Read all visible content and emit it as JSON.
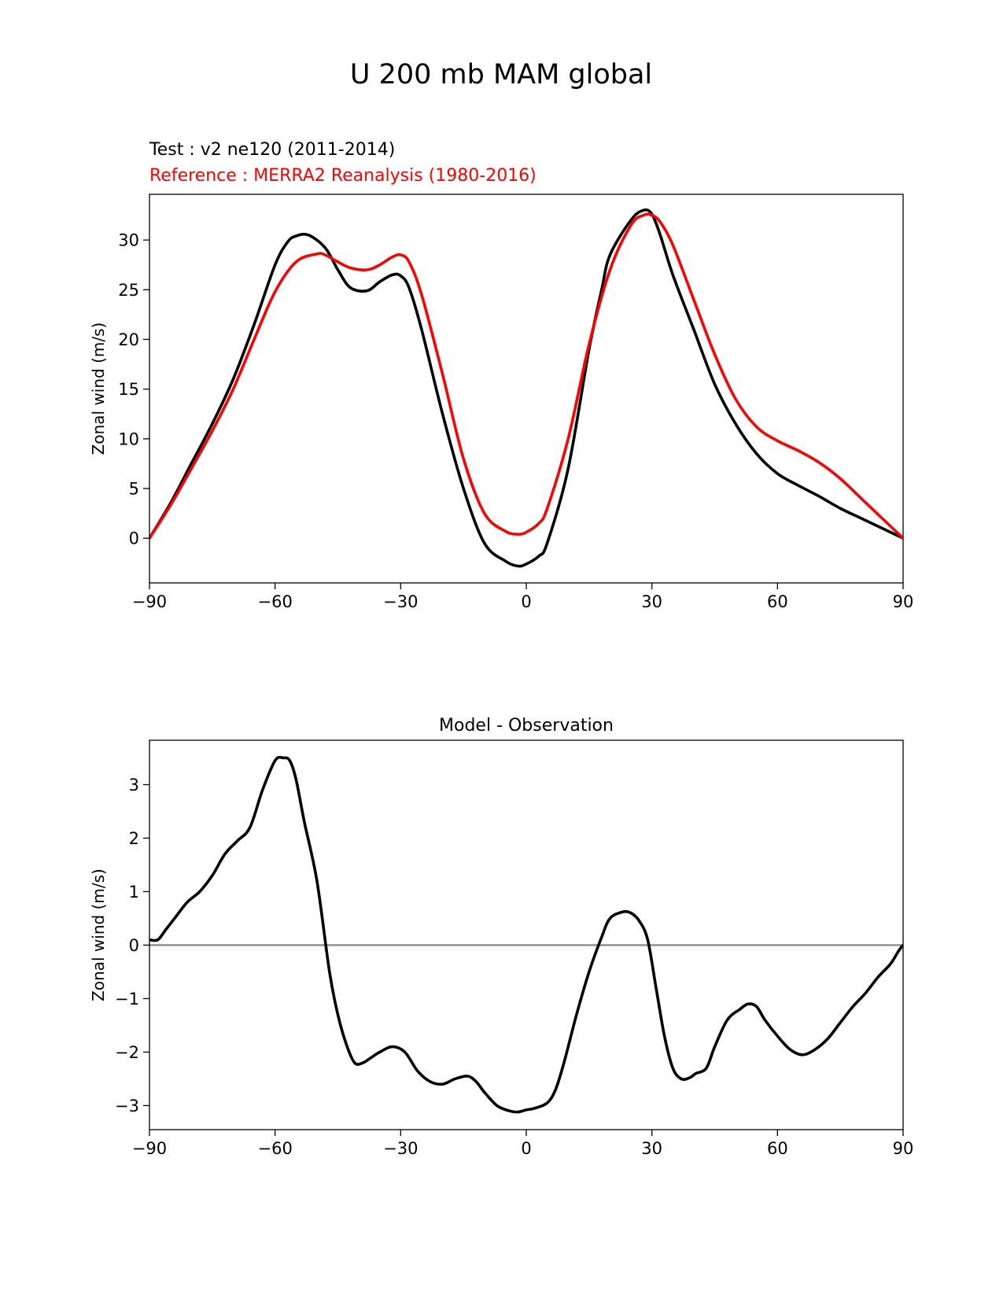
{
  "figure": {
    "title": "U 200 mb MAM global"
  },
  "chart_data": [
    {
      "type": "line",
      "title": "",
      "subtitle_test": "Test : v2 ne120 (2011-2014)",
      "subtitle_reference": "Reference : MERRA2 Reanalysis (1980-2016)",
      "xlabel": "",
      "ylabel": "Zonal wind (m/s)",
      "xlim": [
        -90,
        90
      ],
      "ylim": [
        -4.5,
        34.6
      ],
      "xticks": [
        -90,
        -60,
        -30,
        0,
        30,
        60,
        90
      ],
      "xtick_labels": [
        "−90",
        "−60",
        "−30",
        "0",
        "30",
        "60",
        "90"
      ],
      "yticks": [
        0,
        5,
        10,
        15,
        20,
        25,
        30
      ],
      "ytick_labels": [
        "0",
        "5",
        "10",
        "15",
        "20",
        "25",
        "30"
      ],
      "grid": false,
      "series": [
        {
          "color": "#000000",
          "x": [
            -90,
            -85,
            -80,
            -75,
            -70,
            -65,
            -60,
            -57,
            -55,
            -52,
            -48,
            -45,
            -42,
            -38,
            -35,
            -32,
            -30,
            -28,
            -25,
            -20,
            -15,
            -10,
            -5,
            -2,
            0,
            3,
            5,
            10,
            15,
            18,
            20,
            25,
            28,
            30,
            32,
            35,
            40,
            45,
            50,
            55,
            60,
            65,
            70,
            75,
            80,
            85,
            90
          ],
          "y": [
            0,
            3.5,
            7.5,
            11.5,
            16,
            21.5,
            27.5,
            29.8,
            30.4,
            30.5,
            29.2,
            27,
            25.2,
            24.9,
            25.8,
            26.5,
            26.4,
            25.2,
            21,
            12.5,
            5,
            -0.5,
            -2.3,
            -2.8,
            -2.6,
            -1.8,
            -0.5,
            7,
            19,
            25,
            28.5,
            32,
            33,
            32.6,
            30.5,
            26.5,
            21,
            15.5,
            11.5,
            8.5,
            6.5,
            5.3,
            4.2,
            3,
            2,
            1,
            0
          ]
        },
        {
          "color": "#ff0000",
          "x": [
            -90,
            -85,
            -80,
            -75,
            -70,
            -65,
            -60,
            -55,
            -50,
            -48,
            -45,
            -42,
            -38,
            -35,
            -32,
            -30,
            -28,
            -25,
            -20,
            -15,
            -10,
            -5,
            -2,
            0,
            3,
            5,
            10,
            15,
            20,
            25,
            28,
            30,
            32,
            35,
            40,
            45,
            50,
            55,
            60,
            65,
            70,
            75,
            80,
            85,
            90
          ],
          "y": [
            0,
            3.3,
            7,
            10.8,
            15,
            20,
            24.8,
            27.8,
            28.6,
            28.5,
            27.8,
            27.2,
            27,
            27.5,
            28.3,
            28.5,
            27.8,
            24.5,
            16.5,
            8,
            2.5,
            0.7,
            0.4,
            0.6,
            1.5,
            3,
            10,
            19.5,
            27,
            31.5,
            32.5,
            32.5,
            31.8,
            29.5,
            24,
            18.5,
            14,
            11.2,
            9.8,
            8.8,
            7.6,
            6,
            4,
            2,
            0
          ]
        }
      ]
    },
    {
      "type": "line",
      "title": "Model - Observation",
      "xlabel": "",
      "ylabel": "Zonal wind (m/s)",
      "xlim": [
        -90,
        90
      ],
      "ylim": [
        -3.45,
        3.83
      ],
      "xticks": [
        -90,
        -60,
        -30,
        0,
        30,
        60,
        90
      ],
      "xtick_labels": [
        "−90",
        "−60",
        "−30",
        "0",
        "30",
        "60",
        "90"
      ],
      "yticks": [
        -3,
        -2,
        -1,
        0,
        1,
        2,
        3
      ],
      "ytick_labels": [
        "−3",
        "−2",
        "−1",
        "0",
        "1",
        "2",
        "3"
      ],
      "grid": false,
      "zero_line": {
        "y": 0,
        "color": "#808080"
      },
      "series": [
        {
          "color": "#000000",
          "x": [
            -90,
            -88,
            -86,
            -84,
            -81,
            -78,
            -75,
            -72,
            -69,
            -66,
            -63,
            -60,
            -58,
            -56.5,
            -55,
            -53,
            -50,
            -47,
            -45,
            -43,
            -41,
            -39,
            -37,
            -35,
            -32,
            -29,
            -26,
            -23,
            -20,
            -17,
            -14,
            -12,
            -10,
            -7,
            -4,
            -2,
            0,
            2,
            5,
            7,
            9,
            12,
            15,
            18,
            20,
            23,
            25,
            27,
            29,
            31,
            33,
            35,
            37,
            39,
            40.5,
            43,
            45,
            48,
            51,
            53,
            55,
            57,
            60,
            63,
            66,
            69,
            72,
            75,
            78,
            81,
            84,
            87,
            89,
            90
          ],
          "y": [
            0.1,
            0.1,
            0.3,
            0.5,
            0.8,
            1.0,
            1.3,
            1.7,
            1.95,
            2.2,
            2.9,
            3.45,
            3.5,
            3.45,
            3.1,
            2.3,
            1.2,
            -0.5,
            -1.3,
            -1.85,
            -2.2,
            -2.2,
            -2.1,
            -2.0,
            -1.9,
            -2.0,
            -2.35,
            -2.55,
            -2.6,
            -2.5,
            -2.45,
            -2.55,
            -2.75,
            -3.0,
            -3.1,
            -3.12,
            -3.08,
            -3.05,
            -2.95,
            -2.7,
            -2.2,
            -1.3,
            -0.5,
            0.15,
            0.5,
            0.62,
            0.6,
            0.45,
            0.1,
            -0.8,
            -1.7,
            -2.3,
            -2.5,
            -2.48,
            -2.4,
            -2.3,
            -1.9,
            -1.4,
            -1.2,
            -1.1,
            -1.15,
            -1.4,
            -1.7,
            -1.95,
            -2.05,
            -1.95,
            -1.75,
            -1.45,
            -1.15,
            -0.9,
            -0.6,
            -0.35,
            -0.1,
            0.0
          ]
        }
      ]
    }
  ]
}
